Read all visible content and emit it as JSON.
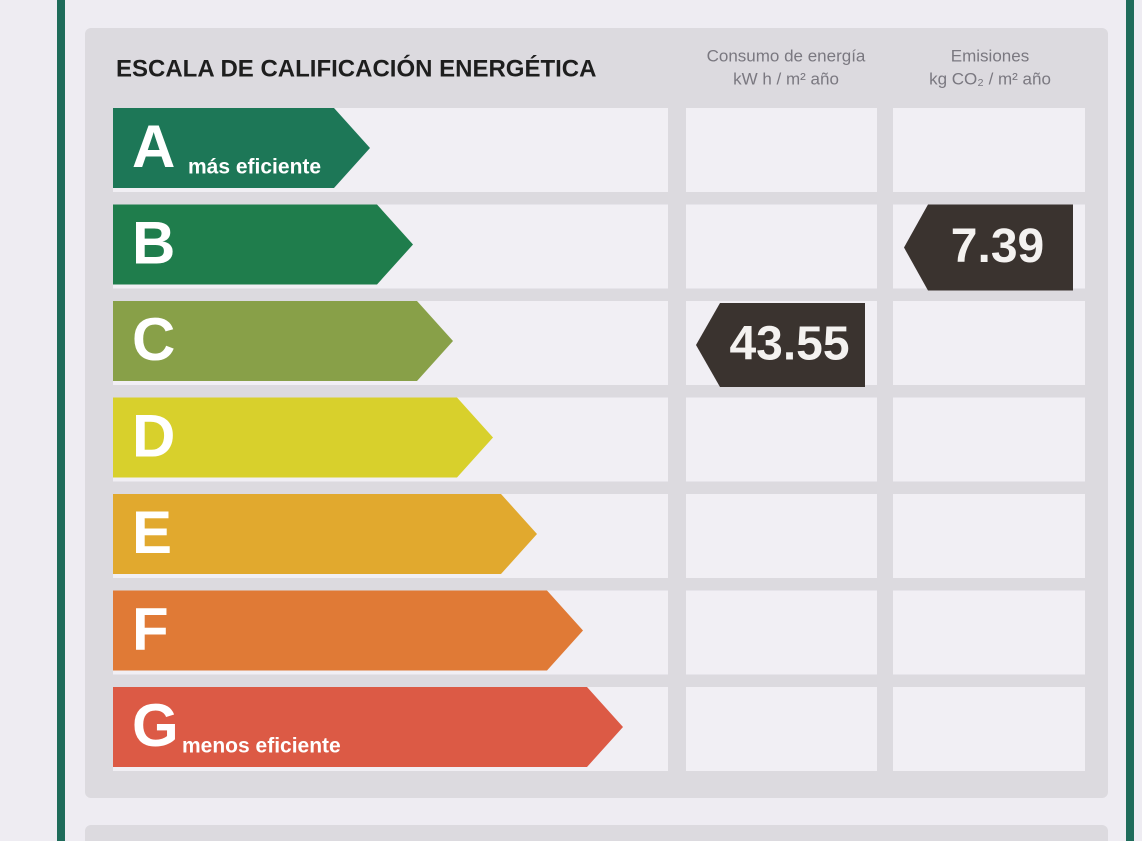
{
  "title": "ESCALA DE CALIFICACIÓN ENERGÉTICA",
  "columns": [
    {
      "title": "Consumo de energía",
      "unit": "kW h / m² año"
    },
    {
      "title": "Emisiones",
      "unit": "kg CO₂ / m² año"
    }
  ],
  "rows": [
    {
      "letter": "A",
      "note": "más eficiente",
      "color": "#1d7757"
    },
    {
      "letter": "B",
      "color": "#1f7d4c",
      "emissions": 7.39
    },
    {
      "letter": "C",
      "color": "#88a048",
      "consumption": 43.55
    },
    {
      "letter": "D",
      "color": "#d8d02c"
    },
    {
      "letter": "E",
      "color": "#e1a92e"
    },
    {
      "letter": "F",
      "color": "#e07a36"
    },
    {
      "letter": "G",
      "note": "menos eficiente",
      "color": "#dc5a45"
    }
  ]
}
